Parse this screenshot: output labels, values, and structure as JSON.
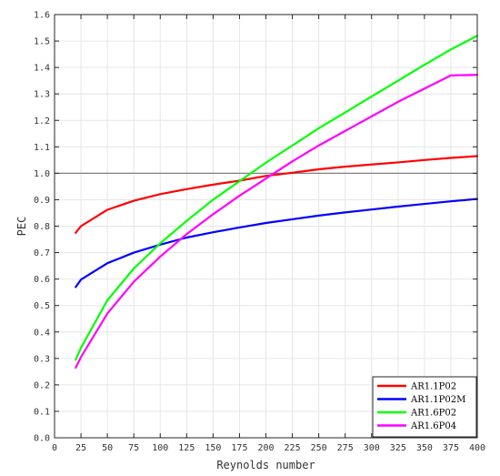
{
  "chart_data": {
    "type": "line",
    "title": "",
    "xlabel": "Reynolds number",
    "ylabel": "PEC",
    "xlim": [
      0,
      400
    ],
    "ylim": [
      0.0,
      1.6
    ],
    "xticks": [
      0,
      25,
      50,
      75,
      100,
      125,
      150,
      175,
      200,
      225,
      250,
      275,
      300,
      325,
      350,
      375,
      400
    ],
    "yticks": [
      0.0,
      0.1,
      0.2,
      0.3,
      0.4,
      0.5,
      0.6,
      0.7,
      0.8,
      0.9,
      1.0,
      1.1,
      1.2,
      1.3,
      1.4,
      1.5,
      1.6
    ],
    "xtick_labels": [
      "0",
      "25",
      "50",
      "75",
      "100",
      "125",
      "150",
      "175",
      "200",
      "225",
      "250",
      "275",
      "300",
      "325",
      "350",
      "375",
      "400"
    ],
    "ytick_labels": [
      "0.0",
      "0.1",
      "0.2",
      "0.3",
      "0.4",
      "0.5",
      "0.6",
      "0.7",
      "0.8",
      "0.9",
      "1.0",
      "1.1",
      "1.2",
      "1.3",
      "1.4",
      "1.5",
      "1.6"
    ],
    "grid": true,
    "reference_line": {
      "y": 1.0,
      "color": "#808080"
    },
    "legend_position": "bottom-right",
    "x": [
      20,
      25,
      50,
      75,
      100,
      125,
      150,
      175,
      200,
      225,
      250,
      275,
      300,
      325,
      350,
      375,
      400
    ],
    "series": [
      {
        "name": "AR1.1P02",
        "color": "#ff0000",
        "values": [
          0.775,
          0.8,
          0.862,
          0.896,
          0.921,
          0.94,
          0.957,
          0.972,
          0.99,
          1.002,
          1.015,
          1.025,
          1.033,
          1.041,
          1.05,
          1.058,
          1.065
        ]
      },
      {
        "name": "AR1.1P02M",
        "color": "#0000ff",
        "values": [
          0.57,
          0.598,
          0.66,
          0.7,
          0.73,
          0.757,
          0.777,
          0.795,
          0.812,
          0.826,
          0.84,
          0.852,
          0.863,
          0.874,
          0.884,
          0.894,
          0.903
        ]
      },
      {
        "name": "AR1.6P02",
        "color": "#00ff00",
        "values": [
          0.295,
          0.34,
          0.52,
          0.64,
          0.735,
          0.82,
          0.9,
          0.97,
          1.04,
          1.105,
          1.17,
          1.23,
          1.29,
          1.35,
          1.41,
          1.468,
          1.52
        ]
      },
      {
        "name": "AR1.6P04",
        "color": "#ff00ff",
        "values": [
          0.265,
          0.305,
          0.47,
          0.59,
          0.685,
          0.77,
          0.845,
          0.915,
          0.98,
          1.045,
          1.105,
          1.16,
          1.215,
          1.27,
          1.32,
          1.37,
          1.372
        ]
      }
    ]
  },
  "colors": {
    "grid": "#e6e6e6",
    "axis": "#262626",
    "reference": "#808080"
  }
}
